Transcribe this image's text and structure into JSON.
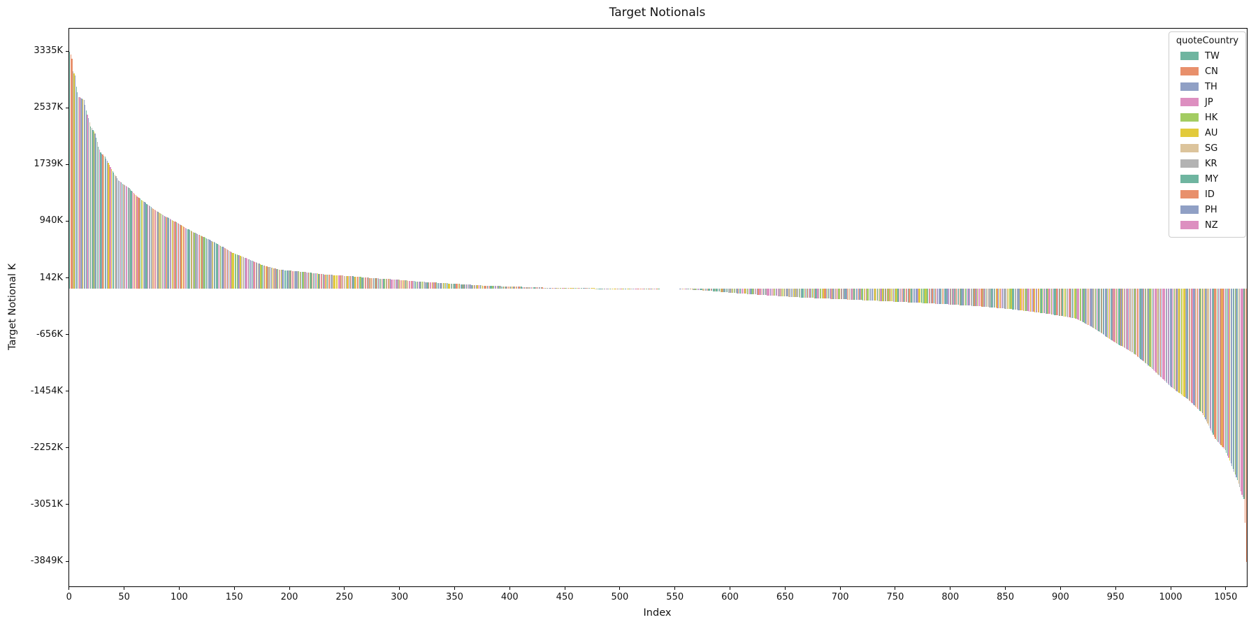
{
  "chart_data": {
    "type": "bar",
    "title": "Target Notionals",
    "xlabel": "Index",
    "ylabel": "Target Notional K",
    "value_unit": "K",
    "sorted": "descending",
    "grid": false,
    "n_bars": 1069,
    "bar_width_data_units": 0.8,
    "xlim": [
      -0.5,
      1068.5
    ],
    "ylim_k": [
      -4193,
      3661
    ],
    "x_ticks": [
      0,
      50,
      100,
      150,
      200,
      250,
      300,
      350,
      400,
      450,
      500,
      550,
      600,
      650,
      700,
      750,
      800,
      850,
      900,
      950,
      1000,
      1050
    ],
    "y_ticks_k": [
      3335,
      2537,
      1739,
      940,
      142,
      -656,
      -1454,
      -2252,
      -3051,
      -3849
    ],
    "y_tick_labels": [
      "3335K",
      "2537K",
      "1739K",
      "940K",
      "142K",
      "-656K",
      "-1454K",
      "-2252K",
      "-3051K",
      "-3849K"
    ],
    "value_range_k": {
      "max": 3335,
      "min": -3849
    },
    "envelope_k": [
      [
        0,
        3335
      ],
      [
        1,
        3300
      ],
      [
        2,
        3240
      ],
      [
        3,
        3060
      ],
      [
        5,
        3000
      ],
      [
        6,
        2840
      ],
      [
        8,
        2700
      ],
      [
        13,
        2660
      ],
      [
        15,
        2510
      ],
      [
        19,
        2285
      ],
      [
        23,
        2185
      ],
      [
        26,
        2000
      ],
      [
        28,
        1915
      ],
      [
        32,
        1860
      ],
      [
        36,
        1740
      ],
      [
        40,
        1630
      ],
      [
        44,
        1530
      ],
      [
        48,
        1480
      ],
      [
        54,
        1415
      ],
      [
        61,
        1300
      ],
      [
        67,
        1230
      ],
      [
        75,
        1135
      ],
      [
        86,
        1025
      ],
      [
        96,
        940
      ],
      [
        107,
        840
      ],
      [
        117,
        760
      ],
      [
        128,
        680
      ],
      [
        138,
        595
      ],
      [
        147,
        512
      ],
      [
        160,
        430
      ],
      [
        175,
        330
      ],
      [
        191,
        265
      ],
      [
        212,
        236
      ],
      [
        233,
        197
      ],
      [
        254,
        177
      ],
      [
        275,
        148
      ],
      [
        296,
        128
      ],
      [
        317,
        98
      ],
      [
        338,
        79
      ],
      [
        359,
        59
      ],
      [
        380,
        39
      ],
      [
        401,
        30
      ],
      [
        422,
        17
      ],
      [
        448,
        8
      ],
      [
        490,
        3
      ],
      [
        530,
        1
      ],
      [
        552,
        0
      ],
      [
        556,
        -2
      ],
      [
        565,
        -15
      ],
      [
        580,
        -30
      ],
      [
        603,
        -62
      ],
      [
        635,
        -96
      ],
      [
        667,
        -128
      ],
      [
        698,
        -148
      ],
      [
        730,
        -170
      ],
      [
        762,
        -193
      ],
      [
        793,
        -218
      ],
      [
        825,
        -248
      ],
      [
        857,
        -293
      ],
      [
        889,
        -356
      ],
      [
        914,
        -423
      ],
      [
        928,
        -541
      ],
      [
        950,
        -768
      ],
      [
        965,
        -900
      ],
      [
        980,
        -1092
      ],
      [
        1000,
        -1388
      ],
      [
        1015,
        -1560
      ],
      [
        1028,
        -1752
      ],
      [
        1040,
        -2116
      ],
      [
        1049,
        -2274
      ],
      [
        1055,
        -2500
      ],
      [
        1060,
        -2700
      ],
      [
        1064,
        -2900
      ],
      [
        1066,
        -2963
      ],
      [
        1067,
        -3300
      ],
      [
        1068,
        -3849
      ]
    ],
    "legend": {
      "title": "quoteCountry",
      "position": "upper right",
      "entries": [
        {
          "label": "TW",
          "color": "#6fb5a0"
        },
        {
          "label": "CN",
          "color": "#e8906c"
        },
        {
          "label": "TH",
          "color": "#90a0c5"
        },
        {
          "label": "JP",
          "color": "#dd8fc0"
        },
        {
          "label": "HK",
          "color": "#a3cc62"
        },
        {
          "label": "AU",
          "color": "#e2ca3c"
        },
        {
          "label": "SG",
          "color": "#dcc49c"
        },
        {
          "label": "KR",
          "color": "#b3b3b3"
        },
        {
          "label": "MY",
          "color": "#6fb5a0"
        },
        {
          "label": "ID",
          "color": "#e8906c"
        },
        {
          "label": "PH",
          "color": "#90a0c5"
        },
        {
          "label": "NZ",
          "color": "#dd8fc0"
        }
      ]
    },
    "color_overrides": {
      "0": "TW",
      "1": "CN",
      "2": "CN",
      "1067": "ID",
      "1068": "ID"
    }
  }
}
